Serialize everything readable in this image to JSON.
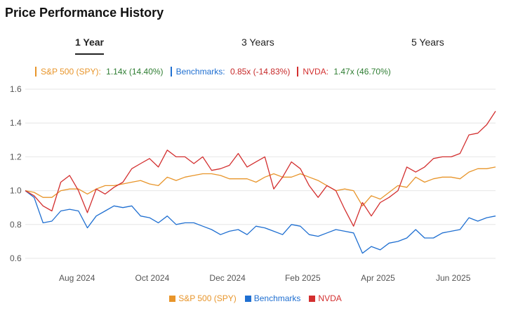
{
  "title": "Price Performance History",
  "tabs": [
    {
      "label": "1 Year",
      "active": true
    },
    {
      "label": "3 Years",
      "active": false
    },
    {
      "label": "5 Years",
      "active": false
    }
  ],
  "summary": [
    {
      "name": "S&P 500 (SPY):",
      "value": "1.14x (14.40%)",
      "color": "#e8952a",
      "negative": false
    },
    {
      "name": "Benchmarks:",
      "value": "0.85x (-14.83%)",
      "color": "#1f6fd1",
      "negative": true
    },
    {
      "name": "NVDA:",
      "value": "1.47x (46.70%)",
      "color": "#d32f2f",
      "negative": false
    }
  ],
  "chart_data": {
    "type": "line",
    "x_tick_labels": [
      "Aug 2024",
      "Oct 2024",
      "Dec 2024",
      "Feb 2025",
      "Apr 2025",
      "Jun 2025"
    ],
    "x_tick_positions": [
      0.11,
      0.27,
      0.43,
      0.59,
      0.75,
      0.91
    ],
    "y_ticks": [
      0.6,
      0.8,
      1.0,
      1.2,
      1.4,
      1.6
    ],
    "ylim": [
      0.55,
      1.65
    ],
    "grid": true,
    "legend_position": "bottom",
    "series": [
      {
        "name": "S&P 500 (SPY)",
        "color": "#e8952a",
        "values": [
          1.0,
          0.99,
          0.96,
          0.96,
          1.0,
          1.01,
          1.01,
          0.98,
          1.01,
          1.03,
          1.03,
          1.04,
          1.05,
          1.06,
          1.04,
          1.03,
          1.08,
          1.06,
          1.08,
          1.09,
          1.1,
          1.1,
          1.09,
          1.07,
          1.07,
          1.07,
          1.05,
          1.08,
          1.1,
          1.08,
          1.08,
          1.1,
          1.08,
          1.06,
          1.03,
          1.0,
          1.01,
          1.0,
          0.91,
          0.97,
          0.95,
          0.99,
          1.03,
          1.02,
          1.08,
          1.05,
          1.07,
          1.08,
          1.08,
          1.07,
          1.11,
          1.13,
          1.13,
          1.14
        ]
      },
      {
        "name": "Benchmarks",
        "color": "#1f6fd1",
        "values": [
          1.0,
          0.96,
          0.81,
          0.82,
          0.88,
          0.89,
          0.88,
          0.78,
          0.85,
          0.88,
          0.91,
          0.9,
          0.91,
          0.85,
          0.84,
          0.81,
          0.85,
          0.8,
          0.81,
          0.81,
          0.79,
          0.77,
          0.74,
          0.76,
          0.77,
          0.74,
          0.79,
          0.78,
          0.76,
          0.74,
          0.8,
          0.79,
          0.74,
          0.73,
          0.75,
          0.77,
          0.76,
          0.75,
          0.63,
          0.67,
          0.65,
          0.69,
          0.7,
          0.72,
          0.77,
          0.72,
          0.72,
          0.75,
          0.76,
          0.77,
          0.84,
          0.82,
          0.84,
          0.85
        ]
      },
      {
        "name": "NVDA",
        "color": "#d32f2f",
        "values": [
          1.0,
          0.97,
          0.91,
          0.88,
          1.05,
          1.09,
          1.0,
          0.87,
          1.01,
          0.98,
          1.02,
          1.05,
          1.13,
          1.16,
          1.19,
          1.14,
          1.24,
          1.2,
          1.2,
          1.16,
          1.2,
          1.12,
          1.13,
          1.15,
          1.22,
          1.14,
          1.17,
          1.2,
          1.01,
          1.08,
          1.17,
          1.13,
          1.03,
          0.96,
          1.03,
          1.0,
          0.89,
          0.79,
          0.93,
          0.85,
          0.93,
          0.96,
          1.0,
          1.14,
          1.11,
          1.14,
          1.19,
          1.2,
          1.2,
          1.22,
          1.33,
          1.34,
          1.39,
          1.47
        ]
      }
    ]
  }
}
